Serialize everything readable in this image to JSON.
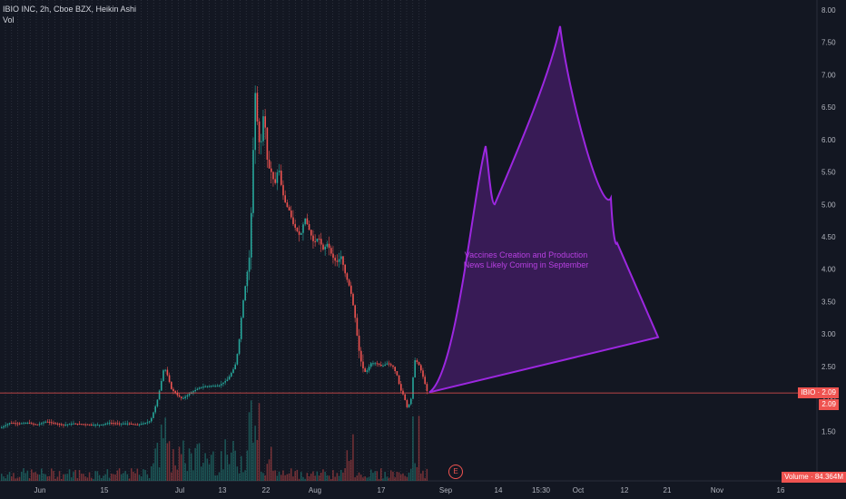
{
  "legend": {
    "line1": "IBIO INC, 2h, Cboe BZX, Heikin Ashi",
    "line2": "Vol"
  },
  "annotation": {
    "line1": "Vaccines Creation and Production",
    "line2": "News Likely Coming in September"
  },
  "price_labels": {
    "symbol_tag": "IBIO · 2.09",
    "last_tag": "2.09",
    "volume_tag": "Volume · 84.364M"
  },
  "event_icon": "E",
  "colors": {
    "up": "#26a69a",
    "down": "#ef5350",
    "projection": "#9c27e0",
    "background": "#131722"
  },
  "chart_data": {
    "type": "candlestick",
    "title": "IBIO INC, 2h, Cboe BZX, Heikin Ashi",
    "y_ticks": [
      "1.50",
      "2.00",
      "2.50",
      "3.00",
      "3.50",
      "4.00",
      "4.50",
      "5.00",
      "5.50",
      "6.00",
      "6.50",
      "7.00",
      "7.50",
      "8.00"
    ],
    "ylim": [
      1.0,
      8.0
    ],
    "x_ticks": [
      "Jun",
      "15",
      "Jul",
      "13",
      "22",
      "Aug",
      "17",
      "Sep",
      "14",
      "15:30",
      "Oct",
      "12",
      "21",
      "Nov",
      "16"
    ],
    "last_price": 2.09,
    "price_path": [
      [
        0,
        1.55
      ],
      [
        10,
        1.63
      ],
      [
        20,
        1.62
      ],
      [
        30,
        1.63
      ],
      [
        40,
        1.6
      ],
      [
        50,
        1.65
      ],
      [
        60,
        1.62
      ],
      [
        70,
        1.6
      ],
      [
        80,
        1.62
      ],
      [
        90,
        1.61
      ],
      [
        100,
        1.6
      ],
      [
        110,
        1.6
      ],
      [
        120,
        1.63
      ],
      [
        130,
        1.62
      ],
      [
        140,
        1.62
      ],
      [
        150,
        1.6
      ],
      [
        160,
        1.63
      ],
      [
        165,
        1.66
      ],
      [
        172,
        1.95
      ],
      [
        176,
        2.2
      ],
      [
        180,
        2.5
      ],
      [
        184,
        2.35
      ],
      [
        188,
        2.15
      ],
      [
        195,
        2.05
      ],
      [
        200,
        2.0
      ],
      [
        210,
        2.1
      ],
      [
        220,
        2.18
      ],
      [
        230,
        2.2
      ],
      [
        240,
        2.2
      ],
      [
        250,
        2.3
      ],
      [
        258,
        2.5
      ],
      [
        262,
        2.8
      ],
      [
        266,
        3.4
      ],
      [
        270,
        3.8
      ],
      [
        274,
        4.2
      ],
      [
        277,
        5.2
      ],
      [
        280,
        6.8
      ],
      [
        283,
        6.2
      ],
      [
        286,
        5.8
      ],
      [
        290,
        6.5
      ],
      [
        294,
        5.6
      ],
      [
        298,
        5.5
      ],
      [
        302,
        5.3
      ],
      [
        306,
        5.6
      ],
      [
        310,
        5.2
      ],
      [
        314,
        5.0
      ],
      [
        318,
        4.9
      ],
      [
        322,
        4.7
      ],
      [
        326,
        4.6
      ],
      [
        330,
        4.5
      ],
      [
        335,
        4.8
      ],
      [
        340,
        4.6
      ],
      [
        345,
        4.4
      ],
      [
        350,
        4.5
      ],
      [
        355,
        4.3
      ],
      [
        360,
        4.4
      ],
      [
        365,
        4.2
      ],
      [
        370,
        4.1
      ],
      [
        375,
        4.2
      ],
      [
        380,
        3.9
      ],
      [
        385,
        3.7
      ],
      [
        390,
        3.3
      ],
      [
        394,
        2.8
      ],
      [
        398,
        2.5
      ],
      [
        402,
        2.4
      ],
      [
        408,
        2.55
      ],
      [
        414,
        2.55
      ],
      [
        420,
        2.5
      ],
      [
        426,
        2.55
      ],
      [
        432,
        2.5
      ],
      [
        437,
        2.35
      ],
      [
        440,
        2.15
      ],
      [
        444,
        2.05
      ],
      [
        448,
        1.85
      ],
      [
        452,
        2.0
      ],
      [
        456,
        2.6
      ],
      [
        460,
        2.55
      ],
      [
        464,
        2.4
      ],
      [
        468,
        2.2
      ],
      [
        470,
        2.1
      ]
    ],
    "projection": {
      "label": "Vaccines Creation and Production News Likely Coming in September",
      "points": [
        [
          473,
          2.1
        ],
        [
          535,
          5.9
        ],
        [
          545,
          5.0
        ],
        [
          617,
          7.75
        ],
        [
          673,
          5.1
        ],
        [
          680,
          4.4
        ],
        [
          725,
          2.95
        ]
      ]
    }
  }
}
